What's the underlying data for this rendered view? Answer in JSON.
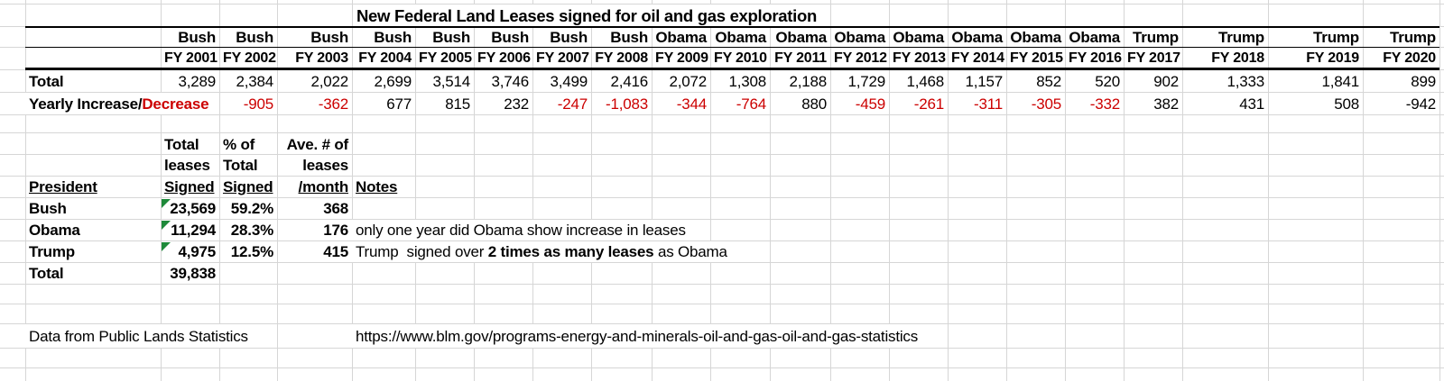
{
  "title": "New Federal Land Leases signed for oil and gas exploration",
  "colors": {
    "negative_red": "#cc0000",
    "comment_flag_green": "#1e8a3a",
    "gridline": "#d6d6d6"
  },
  "main_table": {
    "total_label": "Total",
    "yearly_label_black": "Yearly Increase/",
    "yearly_label_red": "Decrease",
    "columns": [
      {
        "president": "Bush",
        "fy": "FY 2001",
        "total": "3,289",
        "change": "",
        "change_red": false
      },
      {
        "president": "Bush",
        "fy": "FY 2002",
        "total": "2,384",
        "change": "-905",
        "change_red": true
      },
      {
        "president": "Bush",
        "fy": "FY 2003",
        "total": "2,022",
        "change": "-362",
        "change_red": true
      },
      {
        "president": "Bush",
        "fy": "FY 2004",
        "total": "2,699",
        "change": "677",
        "change_red": false
      },
      {
        "president": "Bush",
        "fy": "FY 2005",
        "total": "3,514",
        "change": "815",
        "change_red": false
      },
      {
        "president": "Bush",
        "fy": "FY 2006",
        "total": "3,746",
        "change": "232",
        "change_red": false
      },
      {
        "president": "Bush",
        "fy": "FY 2007",
        "total": "3,499",
        "change": "-247",
        "change_red": true
      },
      {
        "president": "Bush",
        "fy": "FY 2008",
        "total": "2,416",
        "change": "-1,083",
        "change_red": true
      },
      {
        "president": "Obama",
        "fy": "FY 2009",
        "total": "2,072",
        "change": "-344",
        "change_red": true
      },
      {
        "president": "Obama",
        "fy": "FY 2010",
        "total": "1,308",
        "change": "-764",
        "change_red": true
      },
      {
        "president": "Obama",
        "fy": "FY 2011",
        "total": "2,188",
        "change": "880",
        "change_red": false
      },
      {
        "president": "Obama",
        "fy": "FY 2012",
        "total": "1,729",
        "change": "-459",
        "change_red": true
      },
      {
        "president": "Obama",
        "fy": "FY 2013",
        "total": "1,468",
        "change": "-261",
        "change_red": true
      },
      {
        "president": "Obama",
        "fy": "FY 2014",
        "total": "1,157",
        "change": "-311",
        "change_red": true
      },
      {
        "president": "Obama",
        "fy": "FY 2015",
        "total": "852",
        "change": "-305",
        "change_red": true
      },
      {
        "president": "Obama",
        "fy": "FY 2016",
        "total": "520",
        "change": "-332",
        "change_red": true
      },
      {
        "president": "Trump",
        "fy": "FY 2017",
        "total": "902",
        "change": "382",
        "change_red": false
      },
      {
        "president": "Trump",
        "fy": "FY 2018",
        "total": "1,333",
        "change": "431",
        "change_red": false
      },
      {
        "president": "Trump",
        "fy": "FY 2019",
        "total": "1,841",
        "change": "508",
        "change_red": false
      },
      {
        "president": "Trump",
        "fy": "FY 2020",
        "total": "899",
        "change": "-942",
        "change_red": false
      }
    ]
  },
  "summary_table": {
    "headers": {
      "president": "President",
      "signed_line1": "Total",
      "signed_line2": "leases",
      "signed_line3": "Signed",
      "pct_line1": "% of",
      "pct_line2": "Total",
      "pct_line3": "Signed",
      "month_line1": "Ave. # of",
      "month_line2": "leases",
      "month_line3": "/month",
      "notes": "Notes"
    },
    "rows": [
      {
        "label": "Bush",
        "signed": "23,569",
        "pct": "59.2%",
        "per_month": "368",
        "note": ""
      },
      {
        "label": "Obama",
        "signed": "11,294",
        "pct": "28.3%",
        "per_month": "176",
        "note": "only one year did Obama show increase in leases"
      },
      {
        "label": "Trump",
        "signed": "4,975",
        "pct": "12.5%",
        "per_month": "415",
        "note_pre": "Trump  signed over ",
        "note_bold": "2 times as many leases",
        "note_post": " as Obama"
      },
      {
        "label": "Total",
        "signed": "39,838",
        "pct": "",
        "per_month": "",
        "note": ""
      }
    ]
  },
  "footer": {
    "source": "Data from Public Lands Statistics",
    "url": "https://www.blm.gov/programs-energy-and-minerals-oil-and-gas-oil-and-gas-statistics"
  }
}
